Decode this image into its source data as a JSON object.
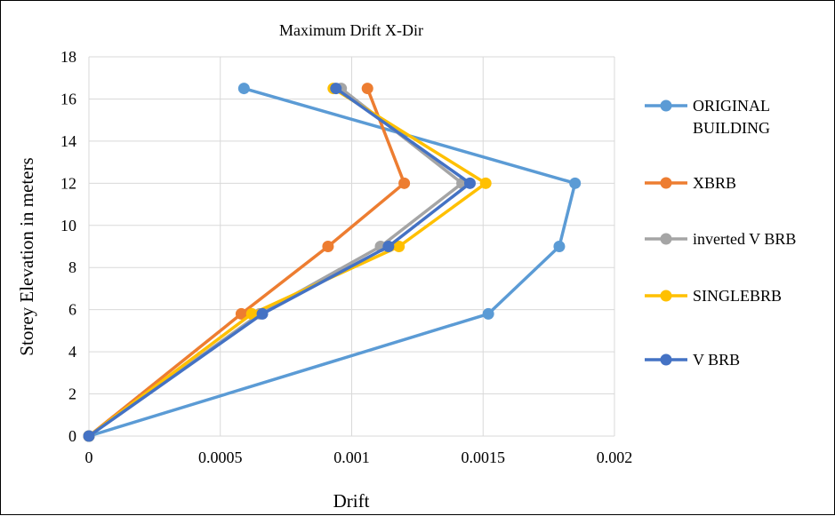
{
  "chart_data": {
    "type": "scatter",
    "title": "Maximum Drift X-Dir",
    "xlabel": "Drift",
    "ylabel": "Storey Elevation in meters",
    "xlim": [
      0,
      0.002
    ],
    "ylim": [
      0,
      18
    ],
    "x_ticks": [
      "0",
      "0.0005",
      "0.001",
      "0.0015",
      "0.002"
    ],
    "y_ticks": [
      "0",
      "2",
      "4",
      "6",
      "8",
      "10",
      "12",
      "14",
      "16",
      "18"
    ],
    "grid": true,
    "legend_position": "right",
    "series": [
      {
        "name": "ORIGINAL BUILDING",
        "legend_lines": [
          "ORIGINAL",
          "BUILDING"
        ],
        "color": "#5b9bd5",
        "points": [
          [
            0,
            0
          ],
          [
            0.00152,
            5.8
          ],
          [
            0.00179,
            9
          ],
          [
            0.00185,
            12
          ],
          [
            0.00059,
            16.5
          ]
        ]
      },
      {
        "name": "XBRB",
        "legend_lines": [
          "XBRB"
        ],
        "color": "#ed7d31",
        "points": [
          [
            0,
            0
          ],
          [
            0.00058,
            5.8
          ],
          [
            0.00091,
            9
          ],
          [
            0.0012,
            12
          ],
          [
            0.00106,
            16.5
          ]
        ]
      },
      {
        "name": "inverted V BRB",
        "legend_lines": [
          "inverted V BRB"
        ],
        "color": "#a5a5a5",
        "points": [
          [
            0,
            0
          ],
          [
            0.00065,
            5.8
          ],
          [
            0.00111,
            9
          ],
          [
            0.00142,
            12
          ],
          [
            0.00096,
            16.5
          ]
        ]
      },
      {
        "name": "SINGLEBRB",
        "legend_lines": [
          "SINGLEBRB"
        ],
        "color": "#ffc000",
        "points": [
          [
            0,
            0
          ],
          [
            0.00062,
            5.8
          ],
          [
            0.00118,
            9
          ],
          [
            0.00151,
            12
          ],
          [
            0.00093,
            16.5
          ]
        ]
      },
      {
        "name": "V BRB",
        "legend_lines": [
          "V BRB"
        ],
        "color": "#4472c4",
        "points": [
          [
            0,
            0
          ],
          [
            0.00066,
            5.8
          ],
          [
            0.00114,
            9
          ],
          [
            0.00145,
            12
          ],
          [
            0.00094,
            16.5
          ]
        ]
      }
    ]
  }
}
